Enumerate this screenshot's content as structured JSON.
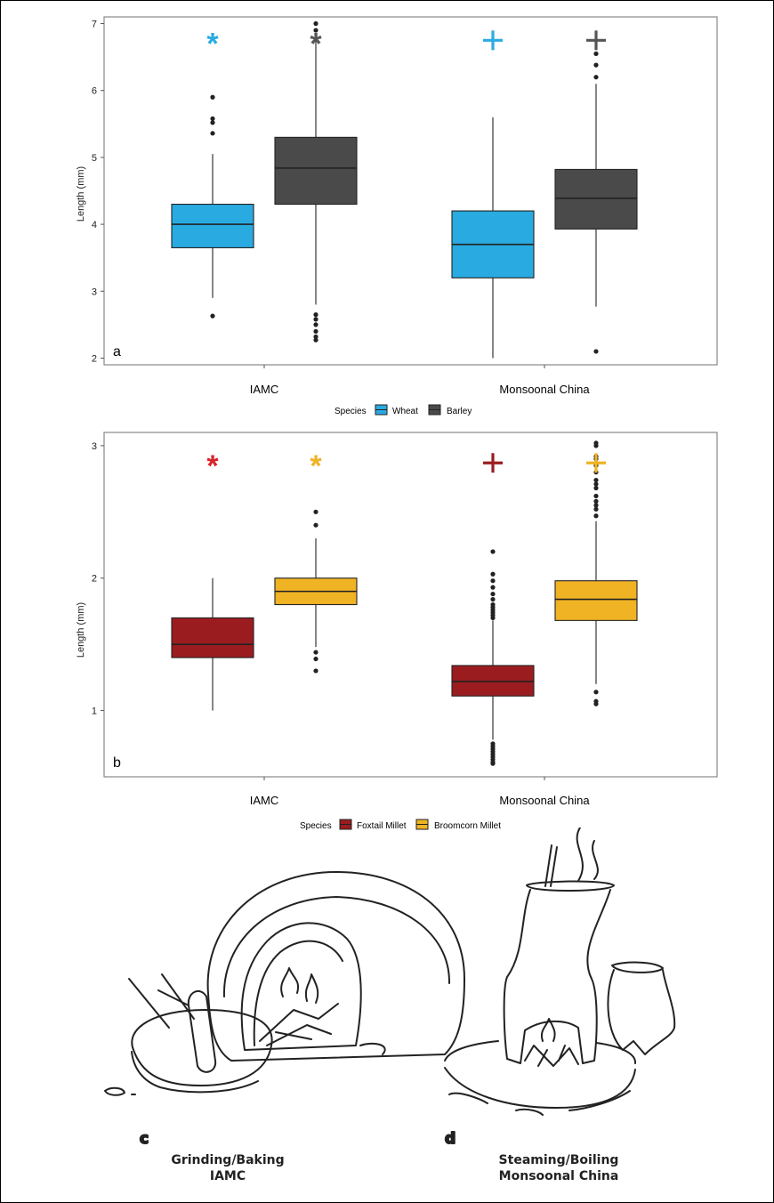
{
  "chart_data": [
    {
      "type": "box",
      "panel": "a",
      "ylabel": "Length (mm)",
      "ylim": [
        1.9,
        7.1
      ],
      "yticks": [
        2,
        3,
        4,
        5,
        6,
        7
      ],
      "categories": [
        "IAMC",
        "Monsoonal China"
      ],
      "legend": {
        "title": "Species",
        "position": "bottom",
        "entries": [
          {
            "name": "Wheat",
            "color": "#29abe2"
          },
          {
            "name": "Barley",
            "color": "#4a4a4a"
          }
        ]
      },
      "series": [
        {
          "name": "Wheat",
          "color": "#29abe2",
          "marker": "*",
          "marker_color": "#29abe2",
          "boxes": [
            {
              "category": "IAMC",
              "whisker_low": 2.9,
              "q1": 3.65,
              "median": 4.0,
              "q3": 4.3,
              "whisker_high": 5.05,
              "outliers": [
                5.9,
                5.58,
                5.52,
                5.36,
                2.63
              ]
            },
            {
              "category": "Monsoonal China",
              "whisker_low": 2.0,
              "q1": 3.2,
              "median": 3.7,
              "q3": 4.2,
              "whisker_high": 5.6,
              "outliers": []
            }
          ]
        },
        {
          "name": "Barley",
          "color": "#4a4a4a",
          "marker": "+",
          "marker_color": "#555555",
          "boxes": [
            {
              "category": "IAMC",
              "whisker_low": 2.8,
              "q1": 4.3,
              "median": 4.84,
              "q3": 5.3,
              "whisker_high": 6.8,
              "outliers": [
                7.0,
                6.9,
                2.65,
                2.58,
                2.5,
                2.4,
                2.32,
                2.27
              ]
            },
            {
              "category": "Monsoonal China",
              "whisker_low": 2.77,
              "q1": 3.93,
              "median": 4.39,
              "q3": 4.82,
              "whisker_high": 6.1,
              "outliers": [
                6.55,
                6.38,
                6.2,
                2.1
              ]
            }
          ]
        }
      ],
      "significance_markers": [
        {
          "category": "IAMC",
          "series": "Wheat",
          "symbol": "*",
          "color": "#29abe2",
          "y": 6.75
        },
        {
          "category": "IAMC",
          "series": "Barley",
          "symbol": "*",
          "color": "#555555",
          "y": 6.75
        },
        {
          "category": "Monsoonal China",
          "series": "Wheat",
          "symbol": "+",
          "color": "#29abe2",
          "y": 6.75
        },
        {
          "category": "Monsoonal China",
          "series": "Barley",
          "symbol": "+",
          "color": "#555555",
          "y": 6.75
        }
      ]
    },
    {
      "type": "box",
      "panel": "b",
      "ylabel": "Length (mm)",
      "ylim": [
        0.5,
        3.1
      ],
      "yticks": [
        1,
        2,
        3
      ],
      "categories": [
        "IAMC",
        "Monsoonal China"
      ],
      "legend": {
        "title": "Species",
        "position": "bottom",
        "entries": [
          {
            "name": "Foxtail Millet",
            "color": "#9b1c1f"
          },
          {
            "name": "Broomcorn Millet",
            "color": "#f0b323"
          }
        ]
      },
      "series": [
        {
          "name": "Foxtail Millet",
          "color": "#9b1c1f",
          "boxes": [
            {
              "category": "IAMC",
              "whisker_low": 1.0,
              "q1": 1.4,
              "median": 1.5,
              "q3": 1.7,
              "whisker_high": 2.0,
              "outliers": []
            },
            {
              "category": "Monsoonal China",
              "whisker_low": 0.78,
              "q1": 1.11,
              "median": 1.22,
              "q3": 1.34,
              "whisker_high": 1.68,
              "outliers": [
                2.2,
                2.03,
                1.98,
                1.93,
                1.88,
                1.84,
                1.8,
                1.78,
                1.76,
                1.74,
                1.72,
                1.7,
                0.75,
                0.73,
                0.71,
                0.69,
                0.67,
                0.65,
                0.63,
                0.61,
                0.6
              ]
            }
          ]
        },
        {
          "name": "Broomcorn Millet",
          "color": "#f0b323",
          "boxes": [
            {
              "category": "IAMC",
              "whisker_low": 1.48,
              "q1": 1.8,
              "median": 1.9,
              "q3": 2.0,
              "whisker_high": 2.3,
              "outliers": [
                2.5,
                2.4,
                1.44,
                1.39,
                1.3
              ]
            },
            {
              "category": "Monsoonal China",
              "whisker_low": 1.2,
              "q1": 1.68,
              "median": 1.84,
              "q3": 1.98,
              "whisker_high": 2.43,
              "outliers": [
                3.02,
                3.0,
                2.92,
                2.9,
                2.85,
                2.8,
                2.74,
                2.71,
                2.68,
                2.62,
                2.58,
                2.55,
                2.52,
                2.47,
                1.14,
                1.07,
                1.05
              ]
            }
          ]
        }
      ],
      "significance_markers": [
        {
          "category": "IAMC",
          "series": "Foxtail Millet",
          "symbol": "*",
          "color": "#d8232a",
          "y": 2.87
        },
        {
          "category": "IAMC",
          "series": "Broomcorn Millet",
          "symbol": "*",
          "color": "#f0b323",
          "y": 2.87
        },
        {
          "category": "Monsoonal China",
          "series": "Foxtail Millet",
          "symbol": "+",
          "color": "#9b1c1f",
          "y": 2.87
        },
        {
          "category": "Monsoonal China",
          "series": "Broomcorn Millet",
          "symbol": "+",
          "color": "#f0b323",
          "y": 2.87
        }
      ]
    }
  ],
  "illustrations": {
    "c": {
      "letter": "c",
      "caption_line1": "Grinding/Baking",
      "caption_line2": "IAMC"
    },
    "d": {
      "letter": "d",
      "caption_line1": "Steaming/Boiling",
      "caption_line2": "Monsoonal China"
    }
  }
}
